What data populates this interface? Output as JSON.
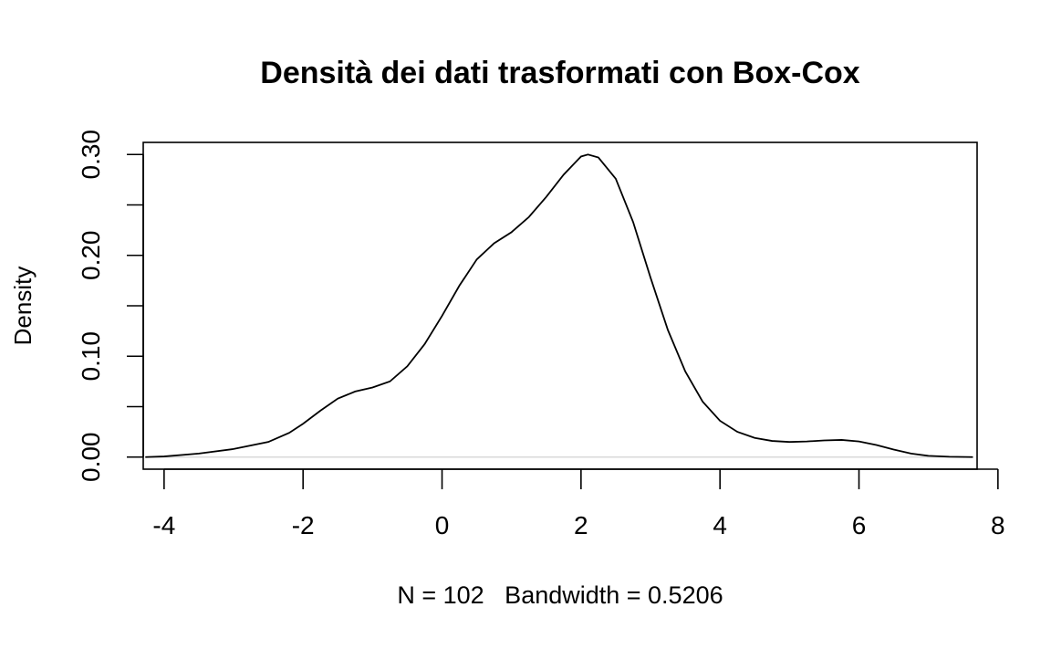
{
  "chart_data": {
    "type": "line",
    "title": "Densità dei dati trasformati con Box-Cox",
    "xlabel": "N = 102   Bandwidth = 0.5206",
    "ylabel": "Density",
    "xlim": [
      -4.3,
      7.7
    ],
    "ylim": [
      -0.012,
      0.312
    ],
    "x_ticks": [
      -4,
      -2,
      0,
      2,
      4,
      6,
      8
    ],
    "x_tick_labels": [
      "-4",
      "-2",
      "0",
      "2",
      "4",
      "6",
      "8"
    ],
    "y_ticks": [
      0.0,
      0.05,
      0.1,
      0.15,
      0.2,
      0.25,
      0.3
    ],
    "y_tick_labels": [
      "0.00",
      "",
      "0.10",
      "",
      "0.20",
      "",
      "0.30"
    ],
    "grid": false,
    "legend": "none",
    "series": [
      {
        "x": [
          -4.27,
          -4.0,
          -3.5,
          -3.0,
          -2.5,
          -2.2,
          -2.0,
          -1.75,
          -1.5,
          -1.25,
          -1.0,
          -0.75,
          -0.5,
          -0.25,
          0.0,
          0.25,
          0.5,
          0.75,
          1.0,
          1.25,
          1.5,
          1.75,
          2.0,
          2.1,
          2.25,
          2.5,
          2.75,
          3.0,
          3.25,
          3.5,
          3.75,
          4.0,
          4.25,
          4.5,
          4.75,
          5.0,
          5.25,
          5.5,
          5.75,
          6.0,
          6.25,
          6.5,
          6.75,
          7.0,
          7.3,
          7.64
        ],
        "y": [
          0.0,
          0.0006,
          0.0035,
          0.008,
          0.015,
          0.024,
          0.033,
          0.046,
          0.058,
          0.065,
          0.069,
          0.075,
          0.09,
          0.112,
          0.14,
          0.17,
          0.196,
          0.212,
          0.223,
          0.238,
          0.258,
          0.28,
          0.298,
          0.3,
          0.297,
          0.276,
          0.233,
          0.178,
          0.126,
          0.085,
          0.055,
          0.036,
          0.025,
          0.019,
          0.016,
          0.015,
          0.0155,
          0.0165,
          0.017,
          0.0155,
          0.012,
          0.0075,
          0.0035,
          0.0012,
          0.0003,
          0.0
        ]
      }
    ],
    "baseline_y": 0,
    "line_color": "#000000",
    "baseline_color": "#d9d9d9"
  }
}
